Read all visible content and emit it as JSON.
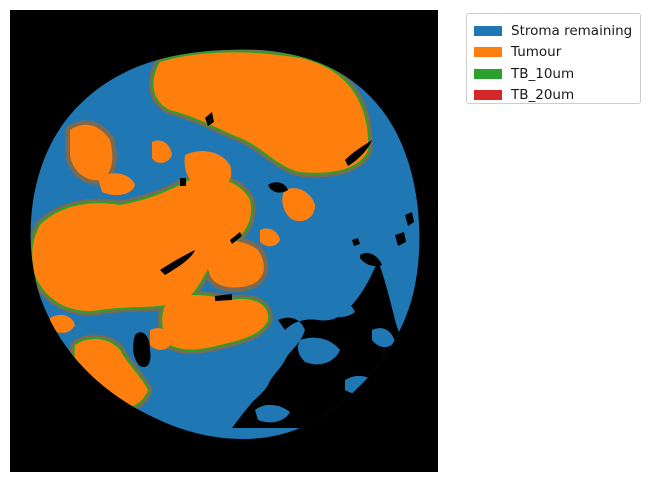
{
  "figure": {
    "background_color": "#000000",
    "legend_position": "outside upper-right",
    "regions": {
      "stroma_color": "#1f77b4",
      "tumour_color": "#ff7f0e",
      "tb10_color": "#2ca02c",
      "tb20_color": "#d62728",
      "void_color": "#000000"
    }
  },
  "legend": {
    "entries": [
      {
        "label": "Stroma remaining",
        "color": "#1f77b4"
      },
      {
        "label": "Tumour",
        "color": "#ff7f0e"
      },
      {
        "label": "TB_10um",
        "color": "#2ca02c"
      },
      {
        "label": "TB_20um",
        "color": "#d62728"
      }
    ]
  }
}
